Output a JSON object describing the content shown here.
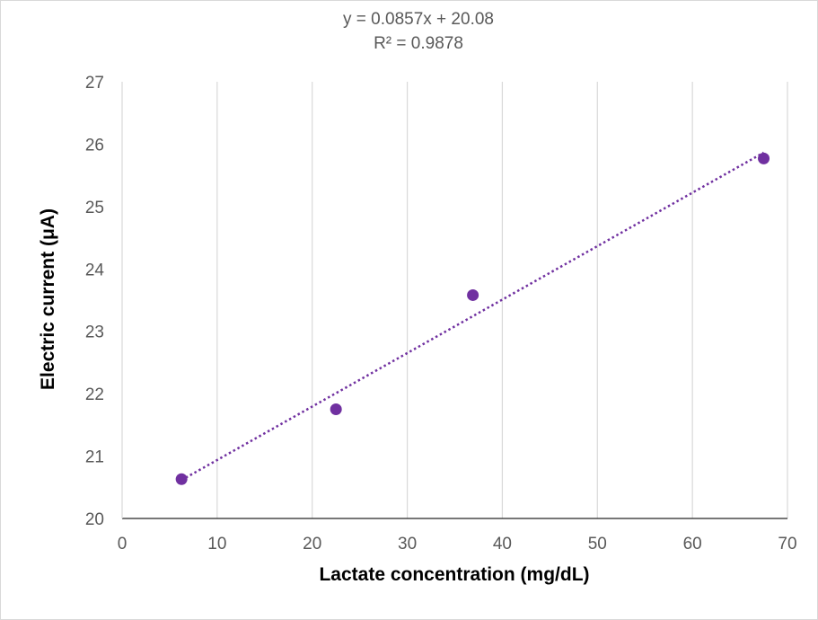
{
  "chart_data": {
    "type": "scatter",
    "title": "",
    "xlabel": "Lactate concentration (mg/dL)",
    "ylabel": "Electric current (μA)",
    "xlim": [
      0,
      70
    ],
    "ylim": [
      20,
      27
    ],
    "x_ticks": [
      0,
      10,
      20,
      30,
      40,
      50,
      60,
      70
    ],
    "y_ticks": [
      20,
      21,
      22,
      23,
      24,
      25,
      26,
      27
    ],
    "grid": {
      "vertical": true,
      "horizontal": false
    },
    "legend": "none",
    "series": [
      {
        "x": [
          6.25,
          22.5,
          36.9,
          67.5
        ],
        "y": [
          20.63,
          21.75,
          23.58,
          25.77
        ],
        "color": "#7030a0",
        "marker": "circle"
      }
    ],
    "trendline": {
      "type": "linear",
      "slope": 0.0857,
      "intercept": 20.08,
      "x_range": [
        6.25,
        67.5
      ],
      "style": "dotted",
      "color": "#7030a0",
      "equation_label": "y = 0.0857x + 20.08",
      "r2_label": "R² = 0.9878"
    }
  }
}
